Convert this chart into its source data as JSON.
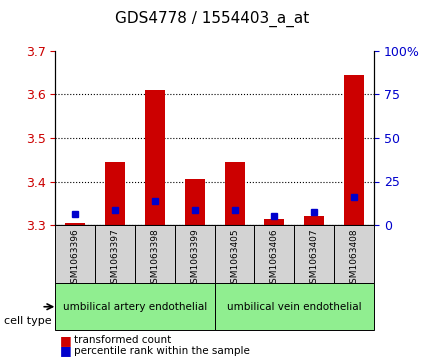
{
  "title": "GDS4778 / 1554403_a_at",
  "samples": [
    "GSM1063396",
    "GSM1063397",
    "GSM1063398",
    "GSM1063399",
    "GSM1063405",
    "GSM1063406",
    "GSM1063407",
    "GSM1063408"
  ],
  "red_values": [
    3.305,
    3.445,
    3.61,
    3.405,
    3.445,
    3.315,
    3.32,
    3.645
  ],
  "blue_values": [
    3.325,
    3.335,
    3.355,
    3.335,
    3.335,
    3.32,
    3.33,
    3.365
  ],
  "blue_percentile": [
    5,
    8,
    15,
    8,
    8,
    4,
    5,
    20
  ],
  "ylim": [
    3.3,
    3.7
  ],
  "yticks_left": [
    3.3,
    3.4,
    3.5,
    3.6,
    3.7
  ],
  "yticks_right": [
    0,
    25,
    50,
    75,
    100
  ],
  "cell_types": [
    {
      "label": "umbilical artery endothelial",
      "start": 0,
      "end": 4,
      "color": "#90ee90"
    },
    {
      "label": "umbilical vein endothelial",
      "start": 4,
      "end": 8,
      "color": "#90ee90"
    }
  ],
  "bar_base": 3.3,
  "bar_width": 0.5,
  "red_color": "#cc0000",
  "blue_color": "#0000cc",
  "bg_color": "#ffffff",
  "plot_bg": "#ffffff",
  "grid_color": "#000000",
  "tick_label_color_left": "#cc0000",
  "tick_label_color_right": "#0000cc",
  "legend_red": "transformed count",
  "legend_blue": "percentile rank within the sample",
  "cell_type_label": "cell type"
}
